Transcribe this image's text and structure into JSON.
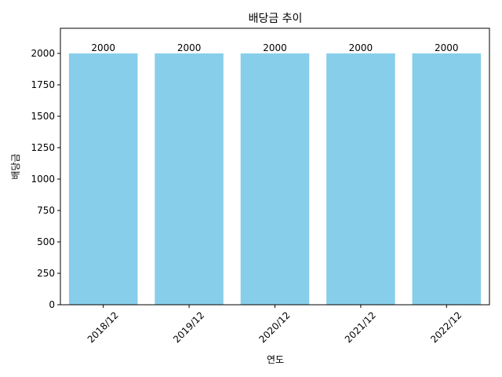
{
  "chart_data": {
    "type": "bar",
    "title": "배당금 추이",
    "xlabel": "연도",
    "ylabel": "배당금",
    "categories": [
      "2018/12",
      "2019/12",
      "2020/12",
      "2021/12",
      "2022/12"
    ],
    "values": [
      2000,
      2000,
      2000,
      2000,
      2000
    ],
    "data_labels": [
      "2000",
      "2000",
      "2000",
      "2000",
      "2000"
    ],
    "ylim": [
      0,
      2200
    ],
    "yticks": [
      0,
      250,
      500,
      750,
      1000,
      1250,
      1500,
      1750,
      2000
    ],
    "x_tick_rotation_deg": 45,
    "grid": false,
    "bar_color": "#87ceeb"
  }
}
